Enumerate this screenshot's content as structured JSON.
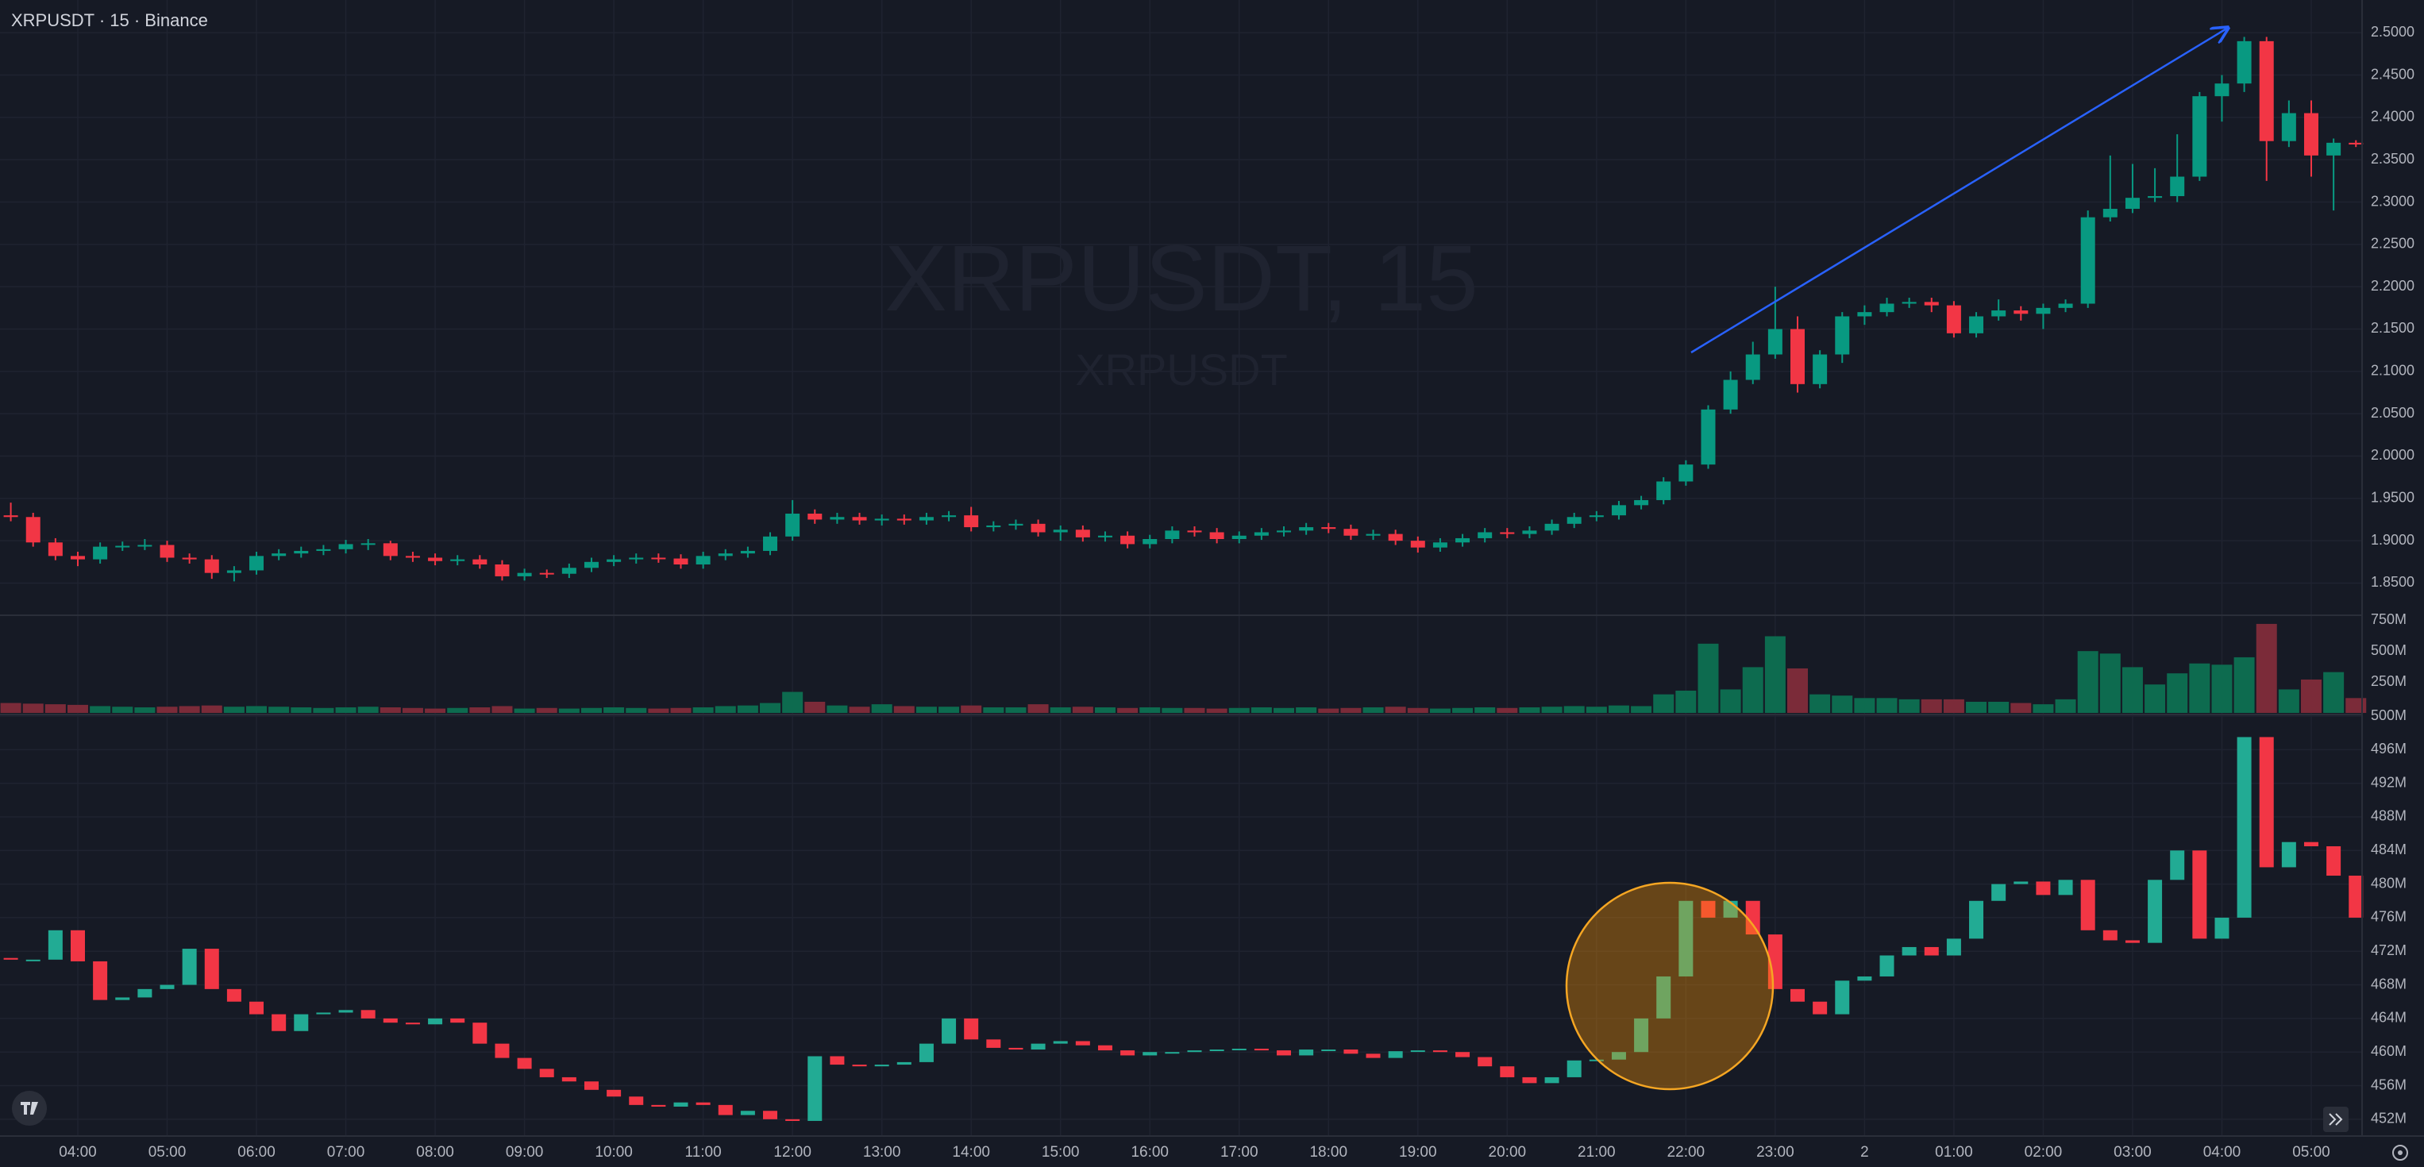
{
  "chart_data": [
    {
      "type": "candlestick",
      "title": "XRPUSDT · 15 · Binance",
      "watermark": [
        "XRPUSDT, 15",
        "XRPUSDT"
      ],
      "up_color": "#089981",
      "down_color": "#f23645",
      "grid": true,
      "categories": [
        null,
        null,
        null,
        "04:00",
        null,
        null,
        null,
        "05:00",
        null,
        null,
        null,
        "06:00",
        null,
        null,
        null,
        "07:00",
        null,
        null,
        null,
        "08:00",
        null,
        null,
        null,
        "09:00",
        null,
        null,
        null,
        "10:00",
        null,
        null,
        null,
        "11:00",
        null,
        null,
        null,
        "12:00",
        null,
        null,
        null,
        "13:00",
        null,
        null,
        null,
        "14:00",
        null,
        null,
        null,
        "15:00",
        null,
        null,
        null,
        "16:00",
        null,
        null,
        null,
        "17:00",
        null,
        null,
        null,
        "18:00",
        null,
        null,
        null,
        "19:00",
        null,
        null,
        null,
        "20:00",
        null,
        null,
        null,
        "21:00",
        null,
        null,
        null,
        "22:00",
        null,
        null,
        null,
        "23:00",
        null,
        null,
        null,
        "2",
        null,
        null,
        null,
        "01:00",
        null,
        null,
        null,
        "02:00",
        null,
        null,
        null,
        "03:00",
        null,
        null,
        null,
        "04:00",
        null,
        null,
        null,
        "05:00",
        null,
        null
      ],
      "open": [
        1.93,
        1.928,
        1.898,
        1.882,
        1.878,
        1.893,
        1.894,
        1.895,
        1.88,
        1.878,
        1.862,
        1.865,
        1.882,
        1.885,
        1.888,
        1.89,
        1.896,
        1.897,
        1.882,
        1.88,
        1.876,
        1.878,
        1.872,
        1.858,
        1.862,
        1.861,
        1.868,
        1.875,
        1.878,
        1.88,
        1.879,
        1.872,
        1.882,
        1.885,
        1.888,
        1.905,
        1.932,
        1.925,
        1.928,
        1.924,
        1.926,
        1.924,
        1.928,
        1.93,
        1.916,
        1.918,
        1.92,
        1.91,
        1.913,
        1.904,
        1.906,
        1.896,
        1.902,
        1.912,
        1.91,
        1.902,
        1.906,
        1.91,
        1.912,
        1.916,
        1.914,
        1.906,
        1.908,
        1.9,
        1.892,
        1.898,
        1.903,
        1.91,
        1.908,
        1.912,
        1.92,
        1.928,
        1.93,
        1.942,
        1.948,
        1.97,
        1.99,
        2.055,
        2.09,
        2.12,
        2.15,
        2.085,
        2.12,
        2.165,
        2.17,
        2.18,
        2.182,
        2.178,
        2.145,
        2.165,
        2.172,
        2.168,
        2.175,
        2.18,
        2.282,
        2.292,
        2.305,
        2.307,
        2.33,
        2.425,
        2.44,
        2.49,
        2.372,
        2.405,
        2.355,
        2.37
      ],
      "high": [
        1.945,
        1.933,
        1.903,
        1.887,
        1.898,
        1.899,
        1.902,
        1.9,
        1.885,
        1.883,
        1.87,
        1.887,
        1.89,
        1.893,
        1.895,
        1.901,
        1.902,
        1.9,
        1.887,
        1.885,
        1.883,
        1.883,
        1.877,
        1.867,
        1.866,
        1.873,
        1.88,
        1.883,
        1.885,
        1.885,
        1.884,
        1.887,
        1.89,
        1.893,
        1.91,
        1.948,
        1.937,
        1.933,
        1.933,
        1.931,
        1.931,
        1.933,
        1.935,
        1.94,
        1.923,
        1.925,
        1.925,
        1.918,
        1.918,
        1.911,
        1.911,
        1.907,
        1.917,
        1.917,
        1.915,
        1.911,
        1.915,
        1.917,
        1.921,
        1.921,
        1.919,
        1.913,
        1.913,
        1.905,
        1.903,
        1.908,
        1.915,
        1.915,
        1.917,
        1.925,
        1.933,
        1.935,
        1.947,
        1.953,
        1.975,
        1.995,
        2.06,
        2.1,
        2.135,
        2.2,
        2.165,
        2.125,
        2.17,
        2.178,
        2.187,
        2.187,
        2.187,
        2.183,
        2.17,
        2.185,
        2.177,
        2.18,
        2.185,
        2.29,
        2.355,
        2.345,
        2.34,
        2.38,
        2.43,
        2.45,
        2.495,
        2.495,
        2.42,
        2.42,
        2.375,
        2.373
      ],
      "low": [
        1.923,
        1.893,
        1.877,
        1.87,
        1.873,
        1.888,
        1.889,
        1.875,
        1.873,
        1.855,
        1.852,
        1.86,
        1.877,
        1.88,
        1.883,
        1.885,
        1.889,
        1.877,
        1.875,
        1.871,
        1.871,
        1.867,
        1.853,
        1.853,
        1.856,
        1.856,
        1.863,
        1.87,
        1.873,
        1.874,
        1.867,
        1.867,
        1.877,
        1.88,
        1.883,
        1.9,
        1.92,
        1.92,
        1.919,
        1.918,
        1.919,
        1.919,
        1.923,
        1.911,
        1.911,
        1.913,
        1.905,
        1.9,
        1.899,
        1.899,
        1.891,
        1.891,
        1.897,
        1.905,
        1.897,
        1.897,
        1.901,
        1.905,
        1.907,
        1.909,
        1.901,
        1.901,
        1.895,
        1.886,
        1.887,
        1.893,
        1.898,
        1.903,
        1.903,
        1.907,
        1.915,
        1.923,
        1.925,
        1.937,
        1.943,
        1.965,
        1.985,
        2.05,
        2.085,
        2.115,
        2.075,
        2.08,
        2.11,
        2.155,
        2.165,
        2.175,
        2.17,
        2.14,
        2.14,
        2.16,
        2.16,
        2.15,
        2.17,
        2.175,
        2.277,
        2.287,
        2.3,
        2.3,
        2.325,
        2.395,
        2.43,
        2.325,
        2.365,
        2.33,
        2.29,
        2.365
      ],
      "close": [
        1.928,
        1.898,
        1.882,
        1.878,
        1.893,
        1.894,
        1.895,
        1.88,
        1.878,
        1.862,
        1.865,
        1.882,
        1.885,
        1.888,
        1.89,
        1.896,
        1.897,
        1.882,
        1.88,
        1.876,
        1.878,
        1.872,
        1.858,
        1.862,
        1.861,
        1.868,
        1.875,
        1.878,
        1.88,
        1.879,
        1.872,
        1.882,
        1.885,
        1.888,
        1.905,
        1.932,
        1.925,
        1.928,
        1.924,
        1.926,
        1.924,
        1.928,
        1.93,
        1.916,
        1.918,
        1.92,
        1.91,
        1.913,
        1.904,
        1.906,
        1.896,
        1.902,
        1.912,
        1.91,
        1.902,
        1.906,
        1.91,
        1.912,
        1.916,
        1.914,
        1.906,
        1.908,
        1.9,
        1.892,
        1.898,
        1.903,
        1.91,
        1.908,
        1.912,
        1.92,
        1.928,
        1.93,
        1.942,
        1.948,
        1.97,
        1.99,
        2.055,
        2.09,
        2.12,
        2.15,
        2.085,
        2.12,
        2.165,
        2.17,
        2.18,
        2.182,
        2.178,
        2.145,
        2.165,
        2.172,
        2.168,
        2.175,
        2.18,
        2.282,
        2.292,
        2.305,
        2.307,
        2.33,
        2.425,
        2.44,
        2.49,
        2.372,
        2.405,
        2.355,
        2.37,
        2.368
      ],
      "ylim": [
        1.812,
        2.533
      ],
      "yticks": [
        {
          "value": 1.85,
          "label": "1.8500"
        },
        {
          "value": 1.9,
          "label": "1.9000"
        },
        {
          "value": 1.95,
          "label": "1.9500"
        },
        {
          "value": 2.0,
          "label": "2.0000"
        },
        {
          "value": 2.05,
          "label": "2.0500"
        },
        {
          "value": 2.1,
          "label": "2.1000"
        },
        {
          "value": 2.15,
          "label": "2.1500"
        },
        {
          "value": 2.2,
          "label": "2.2000"
        },
        {
          "value": 2.25,
          "label": "2.2500"
        },
        {
          "value": 2.3,
          "label": "2.3000"
        },
        {
          "value": 2.35,
          "label": "2.3500"
        },
        {
          "value": 2.4,
          "label": "2.4000"
        },
        {
          "value": 2.45,
          "label": "2.4500"
        },
        {
          "value": 2.5,
          "label": "2.5000"
        }
      ]
    },
    {
      "type": "bar",
      "up_color": "#0d6b4f",
      "down_color": "#7b2b39",
      "values": [
        80,
        75,
        70,
        65,
        55,
        50,
        45,
        50,
        55,
        60,
        50,
        55,
        50,
        45,
        40,
        45,
        50,
        45,
        40,
        35,
        40,
        45,
        55,
        35,
        40,
        35,
        40,
        45,
        40,
        35,
        40,
        45,
        55,
        60,
        80,
        170,
        90,
        60,
        50,
        70,
        55,
        50,
        50,
        60,
        45,
        45,
        70,
        45,
        50,
        45,
        40,
        45,
        40,
        40,
        35,
        40,
        45,
        40,
        45,
        35,
        40,
        45,
        50,
        40,
        35,
        40,
        45,
        40,
        45,
        50,
        55,
        50,
        60,
        55,
        150,
        180,
        560,
        190,
        370,
        620,
        360,
        150,
        140,
        120,
        120,
        110,
        110,
        110,
        90,
        90,
        80,
        70,
        110,
        500,
        480,
        370,
        230,
        320,
        400,
        390,
        450,
        720,
        190,
        270,
        330,
        120
      ],
      "ylim": [
        0,
        790
      ],
      "yticks": [
        {
          "value": 250,
          "label": "250M"
        },
        {
          "value": 500,
          "label": "500M"
        },
        {
          "value": 750,
          "label": "750M"
        }
      ]
    },
    {
      "type": "candlestick",
      "up_color": "#22ab94",
      "down_color": "#f23645",
      "grid": true,
      "open": [
        471.2,
        471,
        471,
        474.5,
        470.8,
        466.2,
        466.5,
        467.5,
        468,
        472.3,
        467.5,
        466,
        464.5,
        462.5,
        464.5,
        464.7,
        465,
        464,
        463.5,
        463.3,
        464,
        463.5,
        461,
        459.3,
        458,
        457,
        456.5,
        455.5,
        454.7,
        453.7,
        453.5,
        454,
        453.7,
        452.5,
        453,
        452,
        451.8,
        459.5,
        458.5,
        458.3,
        458.5,
        458.8,
        461,
        464,
        461.5,
        460.5,
        460.3,
        461,
        461.3,
        460.8,
        460.2,
        459.6,
        460,
        460,
        460.2,
        460.3,
        460.4,
        460.2,
        459.6,
        460.3,
        460.3,
        459.8,
        459.3,
        460.1,
        460.2,
        460,
        459.4,
        458.3,
        457,
        456.3,
        457,
        459,
        459.1,
        460,
        464,
        469,
        478,
        476,
        478,
        474,
        467.5,
        466,
        464.5,
        468.5,
        469,
        471.5,
        472.5,
        471.5,
        473.5,
        478,
        480,
        480.3,
        478.7,
        480.5,
        474.5,
        473.3,
        473,
        480.5,
        484,
        473.5,
        476,
        497.5,
        482,
        485,
        484.5,
        481
      ],
      "close": [
        471,
        471,
        474.5,
        470.8,
        466.2,
        466.5,
        467.5,
        468,
        472.3,
        467.5,
        466,
        464.5,
        462.5,
        464.5,
        464.7,
        465,
        464,
        463.5,
        463.3,
        464,
        463.5,
        461,
        459.3,
        458,
        457,
        456.5,
        455.5,
        454.7,
        453.7,
        453.5,
        454,
        453.7,
        452.5,
        453,
        452,
        451.8,
        459.5,
        458.5,
        458.3,
        458.5,
        458.8,
        461,
        464,
        461.5,
        460.5,
        460.3,
        461,
        461.3,
        460.8,
        460.2,
        459.6,
        460,
        460,
        460.2,
        460.3,
        460.4,
        460.2,
        459.6,
        460.3,
        460.3,
        459.8,
        459.3,
        460.1,
        460.2,
        460,
        459.4,
        458.3,
        457,
        456.3,
        457,
        459,
        459.1,
        460,
        464,
        469,
        478,
        476,
        478,
        474,
        467.5,
        466,
        464.5,
        468.5,
        469,
        471.5,
        472.5,
        471.5,
        473.5,
        478,
        480,
        480.3,
        478.7,
        480.5,
        474.5,
        473.3,
        473,
        480.5,
        484,
        473.5,
        476,
        497.5,
        482,
        485,
        484.5,
        481,
        476
      ],
      "ylim": [
        450,
        500
      ],
      "yticks": [
        {
          "value": 452,
          "label": "452M"
        },
        {
          "value": 456,
          "label": "456M"
        },
        {
          "value": 460,
          "label": "460M"
        },
        {
          "value": 464,
          "label": "464M"
        },
        {
          "value": 468,
          "label": "468M"
        },
        {
          "value": 472,
          "label": "472M"
        },
        {
          "value": 476,
          "label": "476M"
        },
        {
          "value": 480,
          "label": "480M"
        },
        {
          "value": 484,
          "label": "484M"
        },
        {
          "value": 488,
          "label": "488M"
        },
        {
          "value": 492,
          "label": "492M"
        },
        {
          "value": 496,
          "label": "496M"
        },
        {
          "value": 500,
          "label": "500M"
        }
      ]
    }
  ]
}
